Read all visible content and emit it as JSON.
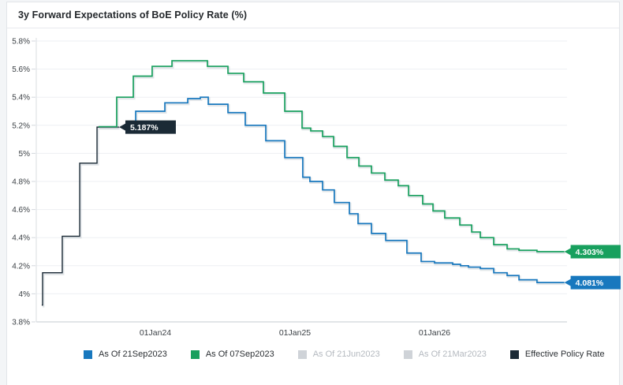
{
  "page": {
    "title": "3y Forward Expectations of BoE Policy Rate (%)"
  },
  "chart_data": {
    "type": "line",
    "subtype": "step",
    "title": "3y Forward Expectations of BoE Policy Rate (%)",
    "grid": "horizontal-only",
    "legend_position": "bottom",
    "x_domain_years": [
      2023.15,
      2026.95
    ],
    "ylim": [
      3.8,
      5.8
    ],
    "y_ticks": [
      {
        "v": 5.8,
        "label": "5.8%"
      },
      {
        "v": 5.6,
        "label": "5.6%"
      },
      {
        "v": 5.4,
        "label": "5.4%"
      },
      {
        "v": 5.2,
        "label": "5.2%"
      },
      {
        "v": 5.0,
        "label": "5%"
      },
      {
        "v": 4.8,
        "label": "4.8%"
      },
      {
        "v": 4.6,
        "label": "4.6%"
      },
      {
        "v": 4.4,
        "label": "4.4%"
      },
      {
        "v": 4.2,
        "label": "4.2%"
      },
      {
        "v": 4.0,
        "label": "4%"
      },
      {
        "v": 3.8,
        "label": "3.8%"
      }
    ],
    "x_ticks": [
      {
        "v": 2024.0,
        "label": "01Jan24"
      },
      {
        "v": 2025.0,
        "label": "01Jan25"
      },
      {
        "v": 2026.0,
        "label": "01Jan26"
      }
    ],
    "series": [
      {
        "name": "As Of 21Sep2023",
        "color": "#1878be",
        "end_label": "4.081%",
        "x_end": 2026.93,
        "steps": [
          [
            2023.842,
            5.2
          ],
          [
            2023.859,
            5.3
          ],
          [
            2024.068,
            5.36
          ],
          [
            2024.232,
            5.39
          ],
          [
            2024.322,
            5.4
          ],
          [
            2024.379,
            5.35
          ],
          [
            2024.52,
            5.29
          ],
          [
            2024.644,
            5.2
          ],
          [
            2024.791,
            5.09
          ],
          [
            2024.927,
            4.97
          ],
          [
            2025.056,
            4.83
          ],
          [
            2025.107,
            4.8
          ],
          [
            2025.198,
            4.74
          ],
          [
            2025.282,
            4.65
          ],
          [
            2025.39,
            4.57
          ],
          [
            2025.452,
            4.5
          ],
          [
            2025.548,
            4.43
          ],
          [
            2025.65,
            4.38
          ],
          [
            2025.802,
            4.29
          ],
          [
            2025.904,
            4.23
          ],
          [
            2026.0,
            4.22
          ],
          [
            2026.13,
            4.21
          ],
          [
            2026.186,
            4.2
          ],
          [
            2026.243,
            4.19
          ],
          [
            2026.328,
            4.18
          ],
          [
            2026.424,
            4.15
          ],
          [
            2026.52,
            4.13
          ],
          [
            2026.605,
            4.1
          ],
          [
            2026.734,
            4.08
          ]
        ]
      },
      {
        "name": "As Of 07Sep2023",
        "color": "#18a05e",
        "end_label": "4.303%",
        "x_end": 2026.93,
        "steps": [
          [
            2023.593,
            5.19
          ],
          [
            2023.723,
            5.4
          ],
          [
            2023.842,
            5.55
          ],
          [
            2023.977,
            5.62
          ],
          [
            2024.119,
            5.66
          ],
          [
            2024.373,
            5.62
          ],
          [
            2024.52,
            5.57
          ],
          [
            2024.633,
            5.51
          ],
          [
            2024.774,
            5.43
          ],
          [
            2024.927,
            5.3
          ],
          [
            2025.051,
            5.18
          ],
          [
            2025.113,
            5.16
          ],
          [
            2025.198,
            5.12
          ],
          [
            2025.277,
            5.05
          ],
          [
            2025.373,
            4.97
          ],
          [
            2025.458,
            4.91
          ],
          [
            2025.548,
            4.86
          ],
          [
            2025.644,
            4.81
          ],
          [
            2025.74,
            4.77
          ],
          [
            2025.814,
            4.7
          ],
          [
            2025.915,
            4.64
          ],
          [
            2025.989,
            4.59
          ],
          [
            2026.073,
            4.54
          ],
          [
            2026.181,
            4.49
          ],
          [
            2026.266,
            4.44
          ],
          [
            2026.328,
            4.4
          ],
          [
            2026.424,
            4.35
          ],
          [
            2026.52,
            4.32
          ],
          [
            2026.605,
            4.31
          ],
          [
            2026.734,
            4.3
          ]
        ]
      },
      {
        "name": "Effective Policy Rate",
        "color": "#1b2a36",
        "end_label": "5.187%",
        "x_end": 2023.74,
        "steps": [
          [
            2023.186,
            3.92
          ],
          [
            2023.192,
            4.15
          ],
          [
            2023.333,
            4.41
          ],
          [
            2023.458,
            4.93
          ],
          [
            2023.582,
            5.187
          ]
        ]
      }
    ]
  },
  "legend": {
    "items": [
      {
        "label": "As Of 21Sep2023",
        "color": "#1878be",
        "active": true
      },
      {
        "label": "As Of 07Sep2023",
        "color": "#18a05e",
        "active": true
      },
      {
        "label": "As Of 21Jun2023",
        "color": "#cfd3d8",
        "active": false
      },
      {
        "label": "As Of 21Mar2023",
        "color": "#cfd3d8",
        "active": false
      },
      {
        "label": "Effective Policy Rate",
        "color": "#1b2a36",
        "active": true
      }
    ]
  }
}
